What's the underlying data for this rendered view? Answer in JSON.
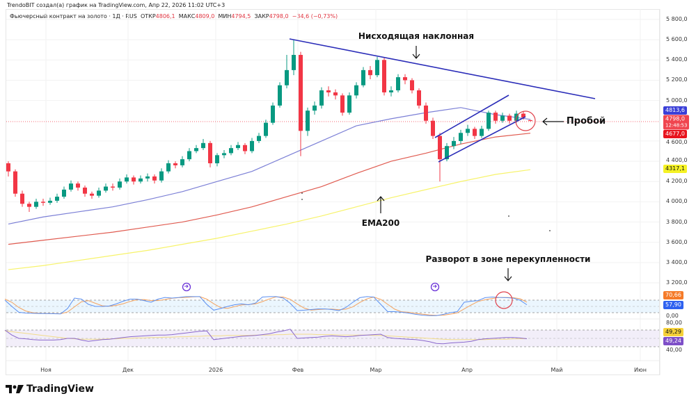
{
  "header": {
    "credit": "TrendoBIT создал(а) график на TradingView.com, Апр 22, 2026 11:02 UTC+3",
    "symbol": "Фьючерсный контракт на золото · 1Д · RUS",
    "open_label": "ОТКР",
    "open": "4806,1",
    "high_label": "МАКС",
    "high": "4809,0",
    "low_label": "МИН",
    "low": "4794,5",
    "close_label": "ЗАКР",
    "close": "4798,0",
    "change": "−34,6 (−0,73%)"
  },
  "price_axis": [
    "5 800,0",
    "5 600,0",
    "5 400,0",
    "5 200,0",
    "5 000,0",
    "4 600,0",
    "4 400,0",
    "4 200,0",
    "4 000,0",
    "3 800,0",
    "3 600,0",
    "3 400,0",
    "3 200,0"
  ],
  "badges": {
    "ema50": {
      "text": "4813,6",
      "color": "#3a3fd8"
    },
    "last": {
      "text": "4798,0",
      "color": "#f0454f"
    },
    "timer": "12:48:53",
    "ema100": {
      "text": "4677,0",
      "color": "#e8141e"
    },
    "ema200": {
      "text": "4317,1",
      "color": "#f5f224"
    },
    "stoch_d": {
      "text": "70,66",
      "color": "#f57b29"
    },
    "stoch_k": {
      "text": "57,90",
      "color": "#2f62f0"
    },
    "stoch_zero": "0,00",
    "rsi_80": "80,00",
    "rsi_ma": {
      "text": "49,29",
      "color": "#f5d13a"
    },
    "rsi": {
      "text": "49,24",
      "color": "#7e4fc8"
    },
    "rsi_40": "40,00"
  },
  "time_axis": [
    "Ноя",
    "Дек",
    "2026",
    "Фев",
    "Мар",
    "Апр",
    "Май",
    "Июн"
  ],
  "annotations": {
    "trendline": "Нисходящая наклонная",
    "breakout": "Пробой",
    "ema200": "EMA200",
    "reversal": "Разворот в зоне перекупленности"
  },
  "logo": "TradingView",
  "colors": {
    "up": "#089981",
    "down": "#f23645",
    "ema50": "#7b7fd6",
    "ema100": "#e05a4f",
    "ema200": "#f7f36a",
    "trend": "#2a2cb8"
  },
  "chart_data": {
    "type": "candlestick",
    "ylim": [
      3200,
      5800
    ],
    "candles": [
      [
        4380,
        4400,
        4250,
        4300
      ],
      [
        4300,
        4320,
        4050,
        4080
      ],
      [
        4080,
        4110,
        3950,
        3980
      ],
      [
        3980,
        4000,
        3900,
        3950
      ],
      [
        3950,
        4030,
        3930,
        4000
      ],
      [
        4000,
        4030,
        3960,
        3990
      ],
      [
        3990,
        4040,
        3970,
        4010
      ],
      [
        4010,
        4080,
        3990,
        4050
      ],
      [
        4050,
        4150,
        4030,
        4120
      ],
      [
        4120,
        4210,
        4100,
        4180
      ],
      [
        4180,
        4200,
        4110,
        4140
      ],
      [
        4140,
        4160,
        4050,
        4080
      ],
      [
        4080,
        4100,
        4030,
        4060
      ],
      [
        4060,
        4140,
        4040,
        4110
      ],
      [
        4110,
        4180,
        4090,
        4150
      ],
      [
        4150,
        4180,
        4110,
        4140
      ],
      [
        4140,
        4230,
        4120,
        4200
      ],
      [
        4200,
        4270,
        4180,
        4240
      ],
      [
        4240,
        4260,
        4170,
        4200
      ],
      [
        4200,
        4260,
        4180,
        4230
      ],
      [
        4230,
        4280,
        4200,
        4250
      ],
      [
        4250,
        4270,
        4180,
        4210
      ],
      [
        4210,
        4330,
        4190,
        4300
      ],
      [
        4300,
        4410,
        4280,
        4380
      ],
      [
        4380,
        4400,
        4330,
        4360
      ],
      [
        4360,
        4450,
        4340,
        4420
      ],
      [
        4420,
        4530,
        4400,
        4500
      ],
      [
        4500,
        4560,
        4480,
        4530
      ],
      [
        4530,
        4620,
        4510,
        4580
      ],
      [
        4580,
        4600,
        4340,
        4380
      ],
      [
        4380,
        4480,
        4350,
        4460
      ],
      [
        4460,
        4510,
        4430,
        4480
      ],
      [
        4480,
        4560,
        4460,
        4530
      ],
      [
        4530,
        4590,
        4510,
        4560
      ],
      [
        4560,
        4580,
        4470,
        4500
      ],
      [
        4500,
        4630,
        4480,
        4600
      ],
      [
        4600,
        4680,
        4580,
        4650
      ],
      [
        4650,
        4810,
        4630,
        4780
      ],
      [
        4780,
        4980,
        4760,
        4950
      ],
      [
        4950,
        5180,
        4930,
        5150
      ],
      [
        5150,
        5450,
        5120,
        5300
      ],
      [
        5300,
        5600,
        5250,
        5450
      ],
      [
        5450,
        5480,
        4450,
        4700
      ],
      [
        4700,
        4930,
        4650,
        4900
      ],
      [
        4900,
        4990,
        4860,
        4950
      ],
      [
        4950,
        5130,
        4920,
        5100
      ],
      [
        5100,
        5140,
        5040,
        5080
      ],
      [
        5080,
        5110,
        5010,
        5050
      ],
      [
        5050,
        5070,
        4850,
        4880
      ],
      [
        4880,
        5080,
        4860,
        5050
      ],
      [
        5050,
        5180,
        5020,
        5150
      ],
      [
        5150,
        5330,
        5130,
        5300
      ],
      [
        5300,
        5340,
        5210,
        5250
      ],
      [
        5250,
        5430,
        5230,
        5400
      ],
      [
        5400,
        5420,
        5050,
        5080
      ],
      [
        5080,
        5140,
        5040,
        5100
      ],
      [
        5100,
        5260,
        5080,
        5230
      ],
      [
        5230,
        5260,
        5160,
        5200
      ],
      [
        5200,
        5220,
        5070,
        5100
      ],
      [
        5100,
        5120,
        4920,
        4950
      ],
      [
        4950,
        4980,
        4770,
        4800
      ],
      [
        4800,
        4830,
        4620,
        4650
      ],
      [
        4650,
        4680,
        4200,
        4420
      ],
      [
        4420,
        4580,
        4400,
        4550
      ],
      [
        4550,
        4640,
        4520,
        4600
      ],
      [
        4600,
        4710,
        4570,
        4680
      ],
      [
        4680,
        4760,
        4650,
        4720
      ],
      [
        4720,
        4740,
        4620,
        4650
      ],
      [
        4650,
        4750,
        4630,
        4720
      ],
      [
        4720,
        4900,
        4700,
        4880
      ],
      [
        4880,
        4900,
        4770,
        4800
      ],
      [
        4800,
        4880,
        4780,
        4850
      ],
      [
        4850,
        4870,
        4770,
        4800
      ],
      [
        4800,
        4900,
        4780,
        4870
      ],
      [
        4870,
        4890,
        4810,
        4832
      ],
      [
        4806.1,
        4809,
        4794.5,
        4798
      ]
    ],
    "ema50": [
      3780,
      3850,
      3900,
      3950,
      4020,
      4100,
      4200,
      4300,
      4450,
      4600,
      4750,
      4820,
      4880,
      4930,
      4860,
      4813.6
    ],
    "ema100": [
      3580,
      3620,
      3660,
      3700,
      3750,
      3800,
      3870,
      3950,
      4050,
      4150,
      4280,
      4400,
      4480,
      4570,
      4640,
      4677
    ],
    "ema200": [
      3330,
      3370,
      3420,
      3470,
      3520,
      3580,
      3640,
      3710,
      3780,
      3860,
      3950,
      4040,
      4120,
      4200,
      4270,
      4317.1
    ],
    "stoch_k": [
      80,
      50,
      22,
      18,
      17,
      16,
      16,
      15,
      14,
      40,
      90,
      85,
      60,
      50,
      50,
      52,
      62,
      75,
      85,
      85,
      78,
      70,
      85,
      93,
      90,
      93,
      97,
      97,
      97,
      60,
      32,
      40,
      50,
      58,
      62,
      58,
      66,
      95,
      97,
      97,
      90,
      65,
      30,
      32,
      35,
      38,
      38,
      35,
      30,
      45,
      70,
      92,
      97,
      95,
      60,
      25,
      25,
      22,
      18,
      12,
      8,
      6,
      6,
      12,
      20,
      25,
      70,
      75,
      78,
      92,
      95,
      93,
      92,
      90,
      80,
      57.9
    ],
    "stoch_d": [
      85,
      70,
      45,
      28,
      20,
      17,
      16,
      16,
      15,
      23,
      48,
      72,
      78,
      65,
      53,
      51,
      55,
      63,
      74,
      82,
      83,
      78,
      78,
      83,
      89,
      92,
      93,
      96,
      97,
      85,
      63,
      44,
      41,
      49,
      57,
      59,
      62,
      73,
      86,
      96,
      95,
      84,
      62,
      42,
      32,
      35,
      37,
      37,
      34,
      37,
      48,
      69,
      86,
      95,
      84,
      60,
      37,
      24,
      22,
      17,
      13,
      9,
      7,
      8,
      13,
      19,
      38,
      57,
      74,
      82,
      88,
      93,
      93,
      92,
      87,
      70.66
    ],
    "rsi": [
      70,
      58,
      50,
      49,
      47,
      46,
      46,
      46,
      47,
      50,
      50,
      46,
      43,
      45,
      47,
      48,
      50,
      52,
      54,
      55,
      56,
      57,
      58,
      58,
      59,
      61,
      63,
      65,
      67,
      68,
      47,
      49,
      51,
      53,
      55,
      56,
      57,
      59,
      61,
      65,
      68,
      72,
      50,
      51,
      52,
      53,
      55,
      56,
      55,
      54,
      55,
      57,
      58,
      59,
      60,
      52,
      50,
      49,
      48,
      47,
      45,
      42,
      38,
      37,
      39,
      40,
      41,
      43,
      47,
      49,
      50,
      51,
      52,
      52,
      51,
      49.24
    ],
    "rsi_ma": [
      68,
      66,
      64,
      62,
      60,
      58,
      56,
      54,
      52,
      50,
      49,
      48,
      48,
      48,
      48,
      49,
      49,
      50,
      50,
      51,
      51,
      52,
      52,
      53,
      53,
      54,
      54,
      55,
      55,
      56,
      56,
      56,
      57,
      57,
      57,
      57,
      58,
      58,
      58,
      59,
      59,
      60,
      60,
      60,
      60,
      59,
      59,
      59,
      58,
      58,
      58,
      58,
      58,
      57,
      57,
      56,
      55,
      54,
      53,
      52,
      51,
      50,
      49,
      48,
      47,
      47,
      47,
      47,
      47,
      47,
      48,
      48,
      48,
      49,
      49,
      49.29
    ]
  }
}
